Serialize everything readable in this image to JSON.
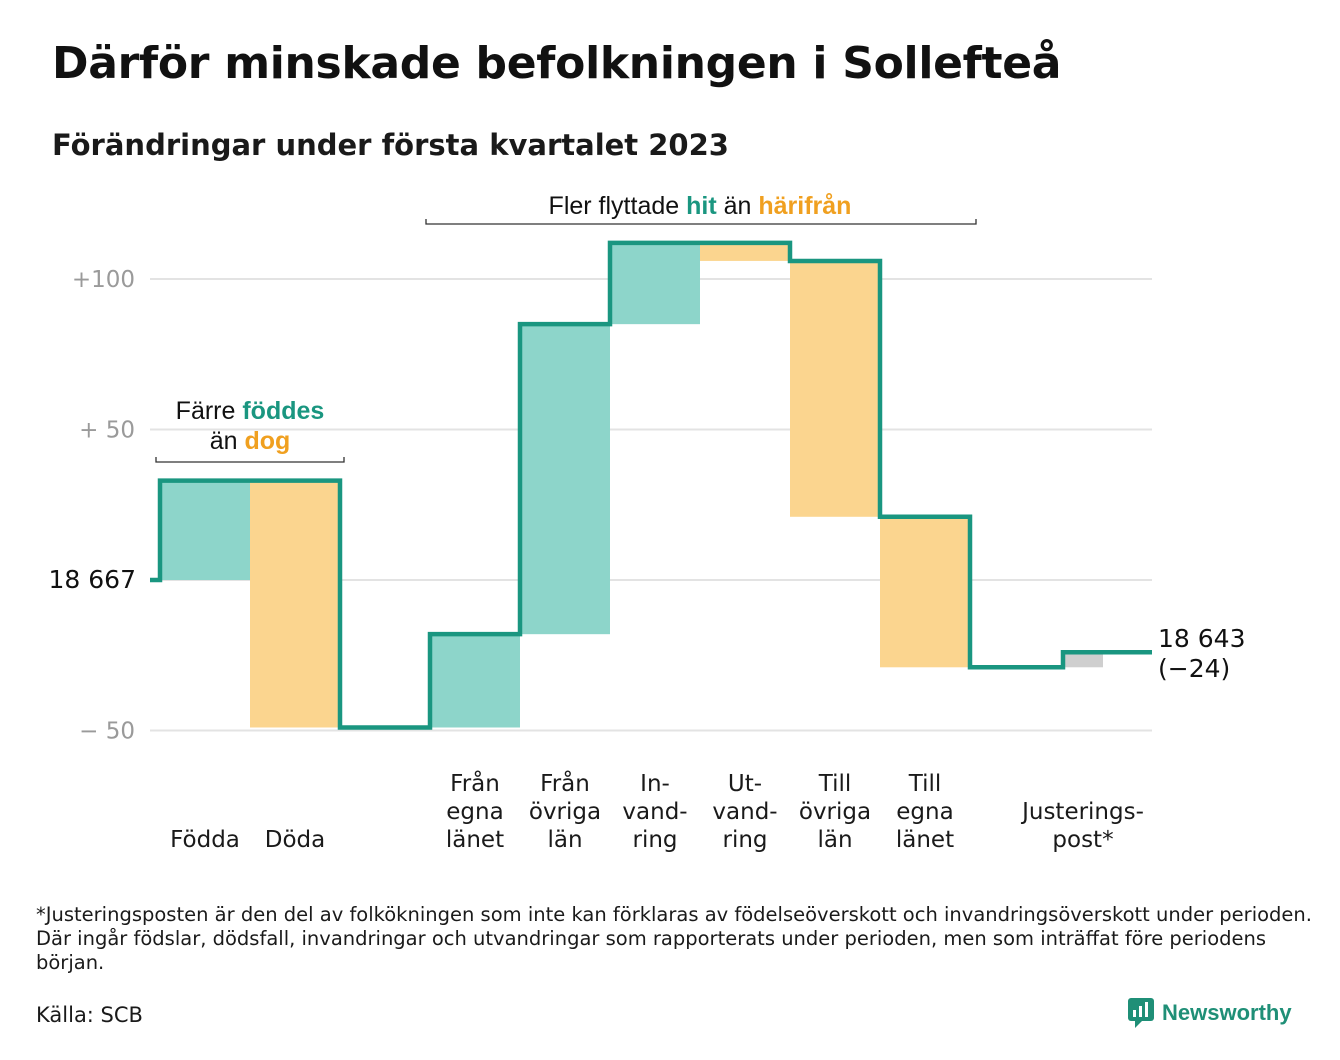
{
  "title": "Därför minskade befolkningen i Sollefteå",
  "subtitle": "Förändringar under första kvartalet 2023",
  "colors": {
    "in": "#8dd5ca",
    "out": "#fbd58f",
    "adjust": "#cfcfcf",
    "line": "#1a9680",
    "hit": "#1a9680",
    "harifran": "#f0a020",
    "grid": "#e3e3e3",
    "tick": "#9a9a9a"
  },
  "chart_data": {
    "type": "waterfall",
    "start": {
      "value": 18667,
      "label": "18 667"
    },
    "end": {
      "value": 18643,
      "label": "18 643",
      "change_label": "(−24)"
    },
    "y_relative_range": [
      -50,
      100
    ],
    "y_ticks": [
      {
        "value": 100,
        "label": "+100"
      },
      {
        "value": 50,
        "label": "+ 50"
      },
      {
        "value": 0,
        "label": ""
      },
      {
        "value": -50,
        "label": "− 50"
      }
    ],
    "steps": [
      {
        "category": [
          "Födda"
        ],
        "change": 33,
        "kind": "in"
      },
      {
        "category": [
          "Döda"
        ],
        "change": -82,
        "kind": "out"
      },
      {
        "category": [
          "Från",
          "egna",
          "länet"
        ],
        "change": 31,
        "kind": "in"
      },
      {
        "category": [
          "Från",
          "övriga",
          "län"
        ],
        "change": 103,
        "kind": "in"
      },
      {
        "category": [
          "In-",
          "vand-",
          "ring"
        ],
        "change": 27,
        "kind": "in"
      },
      {
        "category": [
          "Ut-",
          "vand-",
          "ring"
        ],
        "change": -6,
        "kind": "out"
      },
      {
        "category": [
          "Till",
          "övriga",
          "län"
        ],
        "change": -85,
        "kind": "out"
      },
      {
        "category": [
          "Till",
          "egna",
          "länet"
        ],
        "change": -50,
        "kind": "out"
      },
      {
        "category": [
          "Justerings-",
          "post*"
        ],
        "change": 5,
        "kind": "adjust"
      }
    ],
    "annotations": {
      "births": {
        "line1_a": "Färre ",
        "line1_b": "föddes",
        "line2_a": "än ",
        "line2_b": "dog"
      },
      "migration": {
        "a": "Fler flyttade ",
        "b": "hit",
        "c": " än ",
        "d": "härifrån"
      }
    }
  },
  "footnote": "*Justeringsposten är den del av folkökningen som inte kan förklaras av födelseöverskott och invandringsöverskott under perioden. Där ingår födslar, dödsfall, invandringar och utvandringar som rapporterats under perioden, men som inträffat före periodens början.",
  "source": "Källa: SCB",
  "brand": "Newsworthy"
}
